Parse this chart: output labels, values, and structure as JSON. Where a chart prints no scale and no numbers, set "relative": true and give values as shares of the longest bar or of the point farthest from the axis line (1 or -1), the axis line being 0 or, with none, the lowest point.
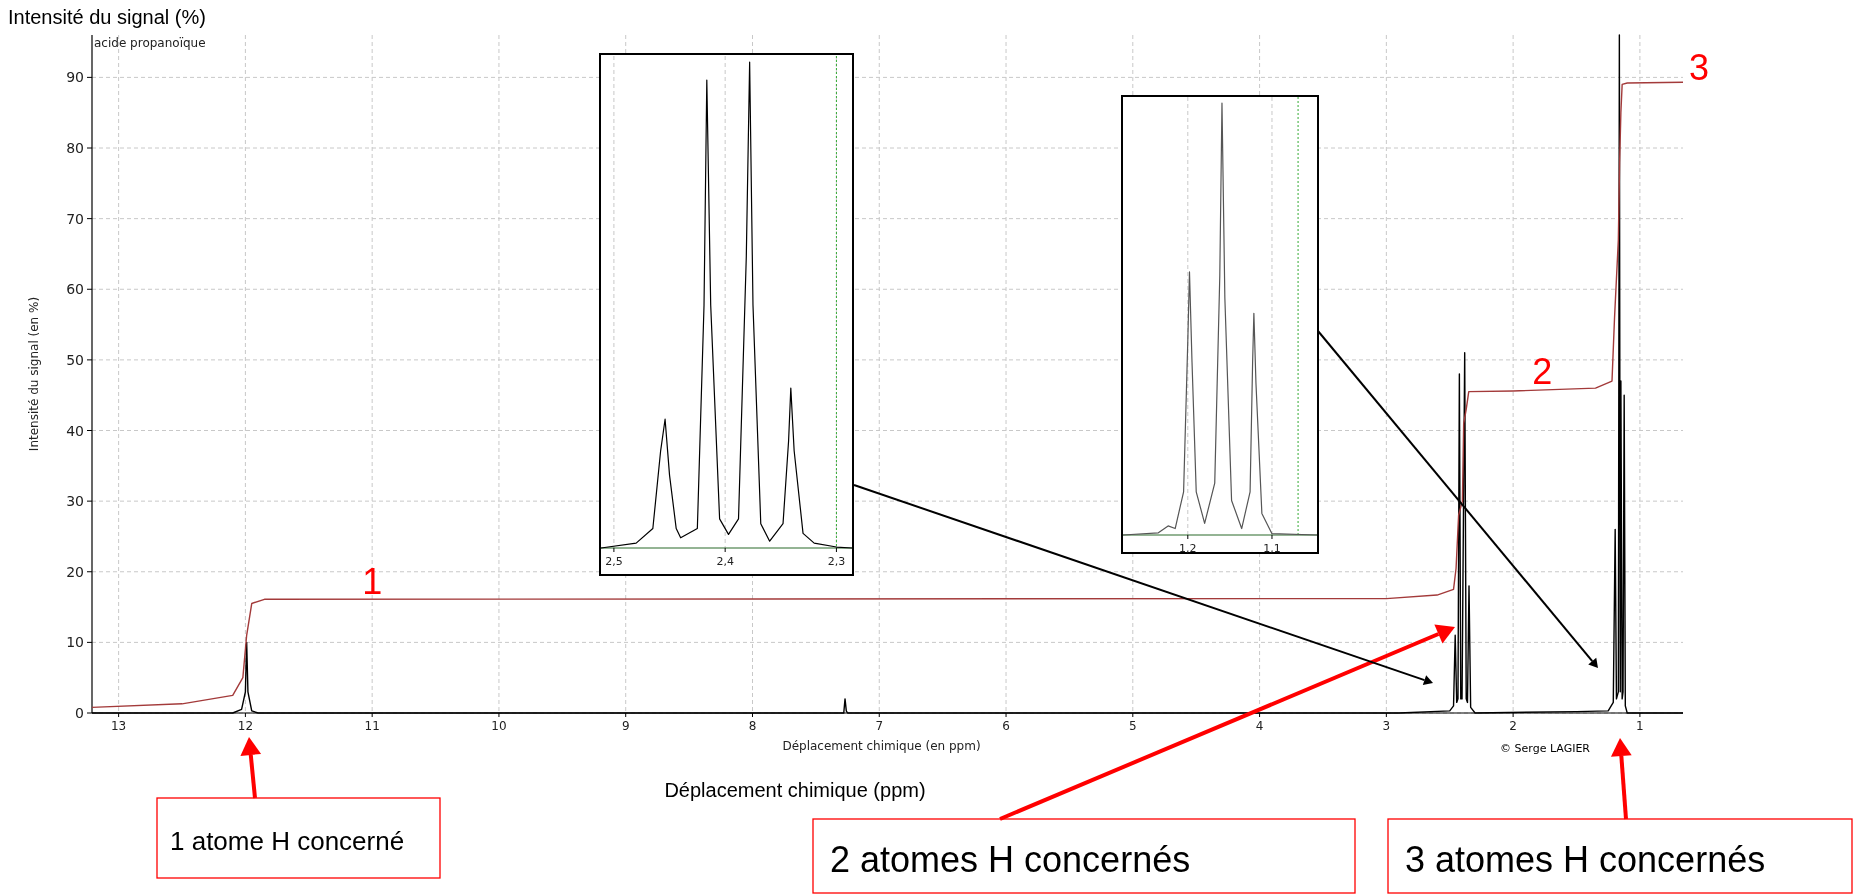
{
  "chart_data": [
    {
      "type": "line",
      "title": "acide propanoïque",
      "xlabel": "Déplacement chimique (en ppm)",
      "ylabel": "Intensité du signal (en %)",
      "xlim": [
        13.21,
        0.66
      ],
      "ylim": [
        0,
        96
      ],
      "xticks": [
        13,
        12,
        11,
        10,
        9,
        8,
        7,
        6,
        5,
        4,
        3,
        2,
        1
      ],
      "yticks": [
        0,
        10,
        20,
        30,
        40,
        50,
        60,
        70,
        80,
        90
      ],
      "grid": true,
      "series": [
        {
          "color": "#000000",
          "x": [
            13.21,
            12.1,
            12.03,
            12.0,
            11.99,
            11.98,
            11.95,
            11.9,
            7.28,
            7.27,
            7.26,
            7.25,
            2.9,
            2.5,
            2.47,
            2.457,
            2.445,
            2.435,
            2.424,
            2.413,
            2.403,
            2.382,
            2.37,
            2.36,
            2.348,
            2.335,
            2.3,
            1.5,
            1.25,
            1.21,
            1.195,
            1.185,
            1.17,
            1.162,
            1.155,
            1.15,
            1.14,
            1.133,
            1.124,
            1.115,
            1.1,
            0.66
          ],
          "values": [
            0,
            0,
            0.5,
            3,
            10,
            3,
            0.3,
            0,
            0,
            2,
            0.3,
            0,
            0,
            0.3,
            1,
            11,
            1.5,
            2,
            48,
            2,
            2,
            51,
            2,
            1.5,
            18,
            0.8,
            0,
            0.2,
            0.3,
            1.5,
            26,
            2,
            3,
            96,
            3,
            47,
            2,
            3,
            45,
            1,
            0,
            0
          ]
        },
        {
          "color": "#a33a3a",
          "x": [
            13.21,
            12.5,
            12.1,
            12.02,
            11.99,
            11.95,
            11.85,
            3,
            2.6,
            2.47,
            2.45,
            2.43,
            2.4,
            2.39,
            2.37,
            2.35,
            2,
            1.35,
            1.22,
            1.2,
            1.17,
            1.16,
            1.15,
            1.14,
            1.1,
            0.66
          ],
          "values": [
            0.8,
            1.3,
            2.5,
            5,
            11,
            15.5,
            16.1,
            16.2,
            16.7,
            17.5,
            20.5,
            28,
            30,
            41,
            43,
            45.5,
            45.6,
            46,
            47,
            56,
            67,
            78,
            85,
            89,
            89.2,
            89.3
          ]
        }
      ],
      "annotations": [
        {
          "text": "1",
          "x": 11.0,
          "y": 16.6
        },
        {
          "text": "2",
          "x": 1.77,
          "y": 46.3
        },
        {
          "text": "3",
          "x": 0.66,
          "y": 89.3
        },
        "Intensité du signal (%)",
        "Déplacement chimique (ppm)",
        "© Serge LAGIER",
        "1 atome H concerné",
        "2 atomes H concernés",
        "3 atomes H concernés"
      ]
    },
    {
      "type": "line",
      "relative": true,
      "xlim": [
        2.5116,
        2.286
      ],
      "xticks": [
        {
          "value": 2.5,
          "label": "2,5"
        },
        {
          "value": 2.4,
          "label": "2,4"
        },
        {
          "value": 2.3,
          "label": "2,3"
        }
      ],
      "tick_labels": "x",
      "grid": "x",
      "ref_lines": [
        {
          "axis": "x",
          "value": 2.3,
          "color": "#33aa33"
        }
      ],
      "series": [
        {
          "color": "#000000",
          "x": [
            2.5116,
            2.48,
            2.465,
            2.458,
            2.454,
            2.45,
            2.444,
            2.44,
            2.425,
            2.419,
            2.4165,
            2.413,
            2.405,
            2.397,
            2.388,
            2.381,
            2.378,
            2.375,
            2.368,
            2.36,
            2.348,
            2.343,
            2.341,
            2.338,
            2.33,
            2.32,
            2.3,
            2.286
          ],
          "values": [
            0,
            0.01,
            0.04,
            0.2,
            0.265,
            0.15,
            0.04,
            0.021,
            0.04,
            0.5,
            0.963,
            0.5,
            0.06,
            0.028,
            0.06,
            0.6,
            1,
            0.5,
            0.05,
            0.014,
            0.05,
            0.22,
            0.329,
            0.2,
            0.03,
            0.01,
            0.002,
            0
          ]
        }
      ]
    },
    {
      "type": "line",
      "relative": true,
      "xlim": [
        1.277,
        1.0465
      ],
      "xticks": [
        {
          "value": 1.2,
          "label": "1,2"
        },
        {
          "value": 1.1,
          "label": "1,1"
        }
      ],
      "tick_labels": "x",
      "grid": "x",
      "ref_lines": [
        {
          "axis": "x",
          "value": 1.069,
          "color": "#33aa33"
        }
      ],
      "series": [
        {
          "color": "#555555",
          "x": [
            1.277,
            1.235,
            1.2234,
            1.215,
            1.205,
            1.2,
            1.198,
            1.195,
            1.19,
            1.18,
            1.168,
            1.162,
            1.1594,
            1.156,
            1.148,
            1.136,
            1.126,
            1.123,
            1.1215,
            1.119,
            1.112,
            1.1,
            1.0465
          ],
          "values": [
            0,
            0.005,
            0.021,
            0.015,
            0.1,
            0.45,
            0.609,
            0.4,
            0.1,
            0.027,
            0.12,
            0.6,
            1,
            0.55,
            0.08,
            0.015,
            0.1,
            0.4,
            0.513,
            0.35,
            0.05,
            0.003,
            0
          ]
        }
      ]
    }
  ]
}
